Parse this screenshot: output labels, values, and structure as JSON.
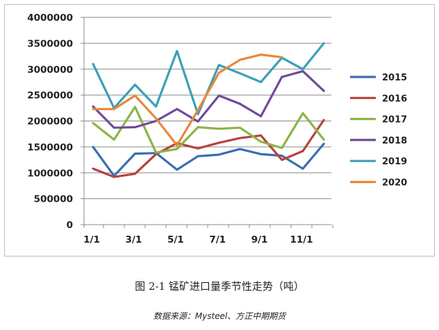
{
  "caption": "图 2-1 锰矿进口量季节性走势（吨）",
  "source": "数据来源：Mysteel、方正中期期货",
  "chart_data": {
    "type": "line",
    "title": "",
    "xlabel": "",
    "ylabel": "",
    "ylim": [
      0,
      4000000
    ],
    "yticks": [
      "0",
      "500000",
      "1000000",
      "1500000",
      "2000000",
      "2500000",
      "3000000",
      "3500000",
      "4000000"
    ],
    "xtick_labels": [
      "1/1",
      "3/1",
      "5/1",
      "7/1",
      "9/1",
      "11/1"
    ],
    "grid": "horizontal",
    "legend_position": "right",
    "series": [
      {
        "name": "2015",
        "color": "#3a6eb4",
        "x": [
          1,
          2,
          3,
          4,
          5,
          6,
          7,
          8,
          9,
          10,
          11,
          12
        ],
        "values": [
          1500000,
          940000,
          1370000,
          1380000,
          1060000,
          1320000,
          1350000,
          1460000,
          1360000,
          1330000,
          1080000,
          1560000
        ]
      },
      {
        "name": "2016",
        "color": "#b5433e",
        "x": [
          1,
          2,
          3,
          4,
          5,
          6,
          7,
          8,
          9,
          10,
          11,
          12
        ],
        "values": [
          1080000,
          920000,
          980000,
          1360000,
          1570000,
          1470000,
          1580000,
          1670000,
          1720000,
          1250000,
          1420000,
          2020000
        ]
      },
      {
        "name": "2017",
        "color": "#8cb445",
        "x": [
          1,
          2,
          3,
          4,
          5,
          6,
          7,
          8,
          9,
          10,
          11,
          12
        ],
        "values": [
          1960000,
          1640000,
          2270000,
          1390000,
          1460000,
          1880000,
          1850000,
          1870000,
          1600000,
          1480000,
          2150000,
          1640000
        ]
      },
      {
        "name": "2018",
        "color": "#6e4a9a",
        "x": [
          1,
          2,
          3,
          4,
          5,
          6,
          7,
          8,
          9,
          10,
          11,
          12
        ],
        "values": [
          2280000,
          1870000,
          1880000,
          2000000,
          2230000,
          1990000,
          2490000,
          2330000,
          2090000,
          2850000,
          2960000,
          2580000
        ]
      },
      {
        "name": "2019",
        "color": "#3c9fb6",
        "x": [
          1,
          2,
          3,
          4,
          5,
          6,
          7,
          8,
          9,
          10,
          11,
          12
        ],
        "values": [
          3100000,
          2250000,
          2700000,
          2280000,
          3350000,
          2130000,
          3080000,
          2920000,
          2750000,
          3220000,
          3000000,
          3500000
        ]
      },
      {
        "name": "2020",
        "color": "#e8873a",
        "x": [
          1,
          2,
          3,
          4,
          5,
          6,
          7,
          8,
          9,
          10
        ],
        "values": [
          2230000,
          2230000,
          2490000,
          2050000,
          1530000,
          2210000,
          2930000,
          3180000,
          3280000,
          3230000
        ]
      }
    ]
  }
}
